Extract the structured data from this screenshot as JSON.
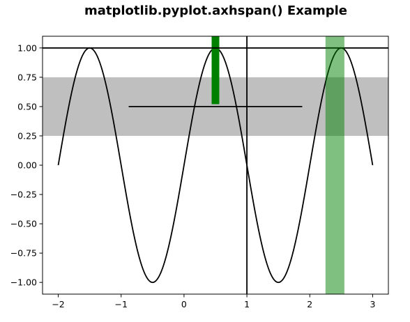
{
  "chart_data": {
    "type": "line",
    "title": "matplotlib.pyplot.axhspan() Example",
    "xlabel": "",
    "ylabel": "",
    "xlim": [
      -2.25,
      3.25
    ],
    "ylim": [
      -1.1,
      1.1
    ],
    "xticks": [
      -2,
      -1,
      0,
      1,
      2,
      3
    ],
    "yticks": [
      -1.0,
      -0.75,
      -0.5,
      -0.25,
      0.0,
      0.25,
      0.5,
      0.75,
      1.0
    ],
    "grid": false,
    "legend": "none",
    "series": [
      {
        "function": "sin(pi*x)",
        "x_start": -2.0,
        "x_end": 3.0,
        "step": 0.01,
        "color": "#000000"
      }
    ],
    "horizontal_spans": [
      {
        "ymin": 0.25,
        "ymax": 0.75,
        "color": "#bfbfbf"
      }
    ],
    "vertical_spans": [
      {
        "xmin": 2.25,
        "xmax": 2.55,
        "color": "#008000",
        "alpha": 0.5
      }
    ],
    "horizontal_lines": [
      {
        "y": 1.0,
        "xmin": -2.25,
        "xmax": 3.25,
        "color": "#000000"
      },
      {
        "y": 0.5,
        "xmin": -0.88,
        "xmax": 1.88,
        "color": "#000000"
      }
    ],
    "vertical_lines": [
      {
        "x": 1.0,
        "ymin": -1.1,
        "ymax": 1.1,
        "color": "#000000",
        "width": "thin"
      },
      {
        "x": 0.5,
        "ymin": 0.52,
        "ymax": 1.1,
        "color": "#008000",
        "width": "thick"
      }
    ]
  }
}
